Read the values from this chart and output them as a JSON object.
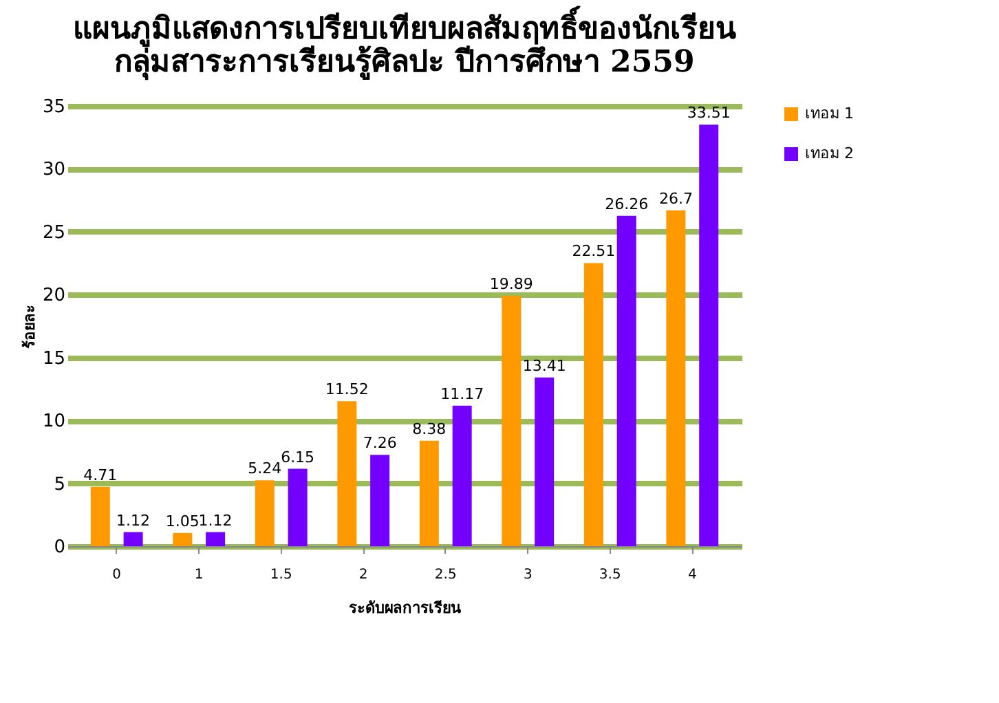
{
  "chart_data": {
    "type": "bar",
    "title": [
      "แผนภูมิแสดงการเปรียบเทียบผลสัมฤทธิ์ของนักเรียน",
      "กลุ่มสาระการเรียนรู้ศิลปะ ปีการศึกษา 2559"
    ],
    "xlabel": "ระดับผลการเรียน",
    "ylabel": "ร้อยละ",
    "categories": [
      "0",
      "1",
      "1.5",
      "2",
      "2.5",
      "3",
      "3.5",
      "4"
    ],
    "series": [
      {
        "name": "เทอม 1",
        "color": "#ff9900",
        "values": [
          4.71,
          1.05,
          5.24,
          11.52,
          8.38,
          19.89,
          22.51,
          26.7
        ]
      },
      {
        "name": "เทอม 2",
        "color": "#7300ff",
        "values": [
          1.12,
          1.12,
          6.15,
          7.26,
          11.17,
          13.41,
          26.26,
          33.51
        ]
      }
    ],
    "ylim": [
      0,
      35
    ],
    "yticks": [
      0,
      5,
      10,
      15,
      20,
      25,
      30,
      35
    ],
    "grid": "y",
    "legend": "right",
    "data_labels": true
  }
}
